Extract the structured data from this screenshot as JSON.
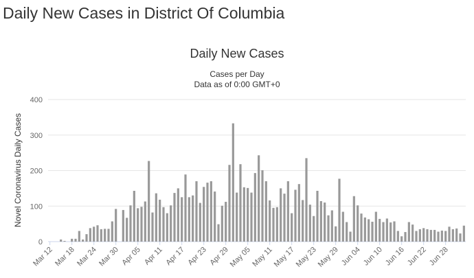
{
  "page_title": "Daily New Cases in District Of Columbia",
  "chart_data": {
    "type": "bar",
    "title": "Daily New Cases",
    "subtitle": [
      "Cases per Day",
      "Data as of 0:00 GMT+0"
    ],
    "y_label": "Novel Coronavirus Daily Cases",
    "color": "#999999",
    "grid": true,
    "ylim": [
      0,
      400
    ],
    "yticks": [
      0,
      100,
      200,
      300,
      400
    ],
    "categories": [
      "Mar 12",
      null,
      null,
      null,
      null,
      null,
      "Mar 18",
      null,
      null,
      null,
      null,
      null,
      "Mar 24",
      null,
      null,
      null,
      null,
      null,
      "Mar 30",
      null,
      null,
      null,
      null,
      null,
      "Apr 05",
      null,
      null,
      null,
      null,
      null,
      "Apr 11",
      null,
      null,
      null,
      null,
      null,
      "Apr 17",
      null,
      null,
      null,
      null,
      null,
      "Apr 23",
      null,
      null,
      null,
      null,
      null,
      "Apr 29",
      null,
      null,
      null,
      null,
      null,
      "May 05",
      null,
      null,
      null,
      null,
      null,
      "May 11",
      null,
      null,
      null,
      null,
      null,
      "May 17",
      null,
      null,
      null,
      null,
      null,
      "May 23",
      null,
      null,
      null,
      null,
      null,
      "May 29",
      null,
      null,
      null,
      null,
      null,
      "Jun 04",
      null,
      null,
      null,
      null,
      null,
      "Jun 10",
      null,
      null,
      null,
      null,
      null,
      "Jun 16",
      null,
      null,
      null,
      null,
      null,
      "Jun 22",
      null,
      null,
      null,
      null,
      null,
      "Jun 28",
      null,
      null,
      null,
      null,
      null
    ],
    "values": [
      0,
      0,
      0,
      6,
      2,
      0,
      8,
      8,
      30,
      6,
      21,
      38,
      42,
      46,
      35,
      36,
      36,
      57,
      92,
      0,
      89,
      67,
      102,
      143,
      94,
      98,
      113,
      227,
      82,
      136,
      118,
      97,
      80,
      102,
      137,
      150,
      125,
      189,
      125,
      130,
      170,
      109,
      154,
      166,
      170,
      141,
      49,
      101,
      112,
      216,
      333,
      138,
      218,
      153,
      151,
      138,
      193,
      243,
      201,
      170,
      116,
      95,
      97,
      150,
      135,
      170,
      80,
      146,
      162,
      117,
      235,
      104,
      72,
      143,
      114,
      110,
      74,
      88,
      43,
      177,
      84,
      55,
      28,
      128,
      102,
      79,
      68,
      63,
      56,
      84,
      64,
      55,
      65,
      54,
      57,
      30,
      15,
      27,
      55,
      48,
      30,
      35,
      38,
      35,
      33,
      33,
      28,
      31,
      30,
      42,
      35,
      37,
      23,
      45
    ]
  }
}
